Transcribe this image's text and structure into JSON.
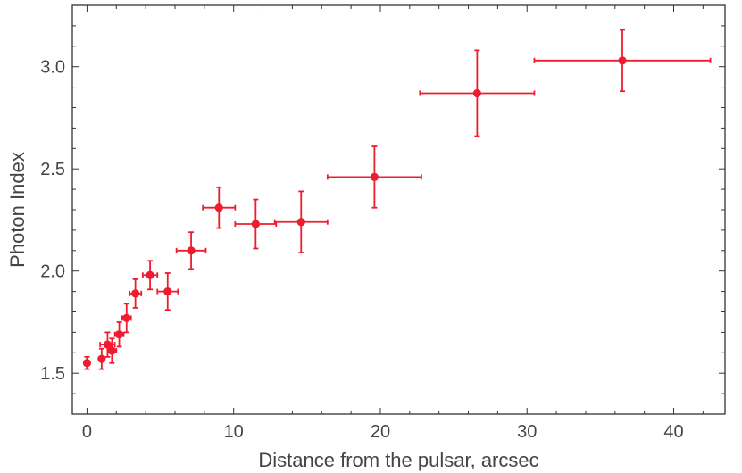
{
  "chart_data": {
    "type": "scatter",
    "xlabel": "Distance from the pulsar, arcsec",
    "ylabel": "Photon Index",
    "xlim": [
      -1,
      43.5
    ],
    "ylim": [
      1.3,
      3.3
    ],
    "xticks": [
      0,
      10,
      20,
      30,
      40
    ],
    "xtick_labels": [
      "0",
      "10",
      "20",
      "30",
      "40"
    ],
    "yticks": [
      1.5,
      2.0,
      2.5,
      3.0
    ],
    "ytick_labels": [
      "1.5",
      "2.0",
      "2.5",
      "3.0"
    ],
    "grid": false,
    "legend": "none",
    "marker_color": "#ee1c2e",
    "axis_color": "#333333",
    "points": [
      {
        "x": 0.0,
        "y": 1.55,
        "xerr": 0.0,
        "yerr": 0.03
      },
      {
        "x": 1.0,
        "y": 1.57,
        "xerr": 0.15,
        "yerr": 0.05
      },
      {
        "x": 1.4,
        "y": 1.64,
        "xerr": 0.5,
        "yerr": 0.06
      },
      {
        "x": 1.7,
        "y": 1.61,
        "xerr": 0.3,
        "yerr": 0.06
      },
      {
        "x": 2.2,
        "y": 1.69,
        "xerr": 0.3,
        "yerr": 0.06
      },
      {
        "x": 2.7,
        "y": 1.77,
        "xerr": 0.3,
        "yerr": 0.07
      },
      {
        "x": 3.3,
        "y": 1.89,
        "xerr": 0.4,
        "yerr": 0.07
      },
      {
        "x": 4.3,
        "y": 1.98,
        "xerr": 0.5,
        "yerr": 0.07
      },
      {
        "x": 5.5,
        "y": 1.9,
        "xerr": 0.7,
        "yerr": 0.09
      },
      {
        "x": 7.1,
        "y": 2.1,
        "xerr": 1.0,
        "yerr": 0.09
      },
      {
        "x": 9.0,
        "y": 2.31,
        "xerr": 1.1,
        "yerr": 0.1
      },
      {
        "x": 11.5,
        "y": 2.23,
        "xerr": 1.4,
        "yerr": 0.12
      },
      {
        "x": 14.6,
        "y": 2.24,
        "xerr": 1.8,
        "yerr": 0.15
      },
      {
        "x": 19.6,
        "y": 2.46,
        "xerr": 3.2,
        "yerr": 0.15
      },
      {
        "x": 26.6,
        "y": 2.87,
        "xerr": 3.9,
        "yerr": 0.21
      },
      {
        "x": 36.5,
        "y": 3.03,
        "xerr": 6.0,
        "yerr": 0.15
      }
    ]
  }
}
